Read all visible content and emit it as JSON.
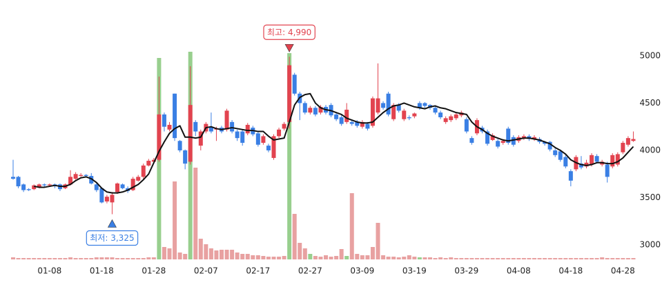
{
  "chart_data": {
    "type": "candlestick",
    "categories": [
      null,
      null,
      null,
      null,
      null,
      null,
      null,
      "01-08",
      null,
      null,
      null,
      null,
      null,
      null,
      null,
      null,
      null,
      "01-18",
      null,
      null,
      null,
      null,
      null,
      null,
      null,
      null,
      null,
      "01-28",
      null,
      null,
      null,
      null,
      null,
      null,
      null,
      null,
      null,
      "02-07",
      null,
      null,
      null,
      null,
      null,
      null,
      null,
      null,
      null,
      "02-17",
      null,
      null,
      null,
      null,
      null,
      null,
      null,
      null,
      null,
      "02-27",
      null,
      null,
      null,
      null,
      null,
      null,
      null,
      null,
      null,
      "03-09",
      null,
      null,
      null,
      null,
      null,
      null,
      null,
      null,
      null,
      "03-19",
      null,
      null,
      null,
      null,
      null,
      null,
      null,
      null,
      null,
      "03-29",
      null,
      null,
      null,
      null,
      null,
      null,
      null,
      null,
      null,
      "04-08",
      null,
      null,
      null,
      null,
      null,
      null,
      null,
      null,
      null,
      "04-18",
      null,
      null,
      null,
      null,
      null,
      null,
      null,
      null,
      null,
      "04-28",
      null,
      null
    ],
    "open": [
      3720,
      3720,
      3640,
      3590,
      3590,
      3610,
      3640,
      3630,
      3640,
      3640,
      3600,
      3640,
      3700,
      3730,
      3740,
      3730,
      3640,
      3600,
      3460,
      3450,
      3560,
      3640,
      3600,
      3580,
      3680,
      3720,
      3840,
      3880,
      3900,
      4380,
      4220,
      4600,
      4100,
      4000,
      3880,
      4300,
      4050,
      4200,
      4250,
      4220,
      4240,
      4220,
      4300,
      4200,
      4200,
      4180,
      4240,
      4180,
      4080,
      4050,
      3920,
      4150,
      4230,
      4300,
      4800,
      4600,
      4500,
      4400,
      4450,
      4400,
      4460,
      4480,
      4380,
      4350,
      4300,
      4300,
      4300,
      4250,
      4280,
      4260,
      4400,
      4500,
      4600,
      4330,
      4480,
      4330,
      4350,
      4360,
      4500,
      4500,
      4480,
      4450,
      4400,
      4300,
      4320,
      4340,
      4370,
      4330,
      4130,
      4180,
      4240,
      4200,
      4110,
      4100,
      4080,
      4230,
      4140,
      4100,
      4130,
      4150,
      4120,
      4120,
      4090,
      4090,
      4000,
      3990,
      3930,
      3780,
      3800,
      3860,
      3830,
      3850,
      3940,
      3850,
      3850,
      3830,
      3850,
      3980,
      4060,
      4100
    ],
    "high": [
      3900,
      3730,
      3650,
      3600,
      3640,
      3650,
      3650,
      3650,
      3650,
      3650,
      3650,
      3790,
      3770,
      3760,
      3750,
      3760,
      3650,
      3610,
      3530,
      3560,
      3660,
      3650,
      3620,
      3720,
      3740,
      3860,
      3910,
      3920,
      4780,
      4400,
      4300,
      4600,
      4110,
      4010,
      4890,
      4320,
      4220,
      4300,
      4400,
      4250,
      4260,
      4440,
      4320,
      4220,
      4220,
      4290,
      4260,
      4200,
      4170,
      4070,
      4170,
      4240,
      4300,
      4990,
      4820,
      4620,
      4520,
      4470,
      4470,
      4480,
      4480,
      4500,
      4400,
      4370,
      4500,
      4320,
      4320,
      4320,
      4300,
      4570,
      4920,
      4520,
      4620,
      4500,
      4500,
      4440,
      4370,
      4400,
      4520,
      4510,
      4490,
      4470,
      4420,
      4360,
      4380,
      4400,
      4420,
      4350,
      4150,
      4340,
      4260,
      4220,
      4180,
      4120,
      4120,
      4250,
      4160,
      4160,
      4170,
      4170,
      4160,
      4140,
      4100,
      4100,
      4020,
      4010,
      3950,
      3800,
      3950,
      3940,
      3900,
      3970,
      3960,
      3900,
      3880,
      3970,
      3980,
      4100,
      4150,
      4200
    ],
    "low": [
      3690,
      3600,
      3560,
      3570,
      3580,
      3600,
      3610,
      3620,
      3600,
      3570,
      3590,
      3630,
      3690,
      3720,
      3720,
      3640,
      3560,
      3440,
      3440,
      3325,
      3540,
      3590,
      3550,
      3570,
      3670,
      3700,
      3830,
      3870,
      3880,
      4200,
      4200,
      4100,
      3980,
      3800,
      3850,
      4150,
      4000,
      4180,
      4180,
      4100,
      4180,
      4200,
      4180,
      4100,
      4050,
      4160,
      4150,
      4040,
      4060,
      3980,
      3900,
      4130,
      4210,
      4230,
      4580,
      4320,
      4380,
      4380,
      4360,
      4380,
      4380,
      4350,
      4310,
      4260,
      4280,
      4260,
      4240,
      4230,
      4210,
      4240,
      4380,
      4430,
      4360,
      4310,
      4400,
      4310,
      4320,
      4340,
      4430,
      4450,
      4430,
      4380,
      4330,
      4280,
      4300,
      4320,
      4350,
      4180,
      4060,
      4160,
      4180,
      4050,
      4100,
      4020,
      4060,
      4060,
      4040,
      4080,
      4110,
      4100,
      4100,
      4070,
      4050,
      3990,
      3930,
      3880,
      3810,
      3620,
      3780,
      3800,
      3810,
      3830,
      3860,
      3830,
      3660,
      3810,
      3830,
      3960,
      4040,
      4090
    ],
    "close": [
      3700,
      3620,
      3580,
      3580,
      3630,
      3640,
      3630,
      3640,
      3620,
      3590,
      3640,
      3720,
      3750,
      3740,
      3730,
      3650,
      3580,
      3450,
      3510,
      3530,
      3650,
      3600,
      3570,
      3700,
      3720,
      3840,
      3890,
      3900,
      4380,
      4250,
      4270,
      4130,
      4000,
      3860,
      4480,
      4200,
      4200,
      4280,
      4200,
      4230,
      4200,
      4420,
      4200,
      4130,
      4080,
      4270,
      4170,
      4060,
      4150,
      4000,
      4150,
      4220,
      4280,
      4900,
      4600,
      4500,
      4400,
      4450,
      4380,
      4460,
      4400,
      4370,
      4330,
      4280,
      4430,
      4280,
      4260,
      4300,
      4230,
      4550,
      4550,
      4450,
      4380,
      4480,
      4420,
      4420,
      4340,
      4390,
      4450,
      4470,
      4450,
      4400,
      4350,
      4340,
      4360,
      4380,
      4400,
      4200,
      4080,
      4320,
      4200,
      4070,
      4160,
      4040,
      4100,
      4080,
      4060,
      4140,
      4150,
      4120,
      4140,
      4090,
      4070,
      4010,
      3950,
      3900,
      3830,
      3680,
      3930,
      3820,
      3870,
      3950,
      3880,
      3880,
      3720,
      3950,
      3960,
      4080,
      4130,
      4120
    ],
    "ma": [
      null,
      null,
      null,
      null,
      3620,
      3610,
      3610,
      3620,
      3630,
      3620,
      3620,
      3640,
      3680,
      3710,
      3720,
      3700,
      3660,
      3600,
      3560,
      3550,
      3550,
      3560,
      3580,
      3610,
      3640,
      3690,
      3750,
      3870,
      3990,
      4090,
      4180,
      4230,
      4260,
      4140,
      4140,
      4130,
      4140,
      4240,
      4250,
      4230,
      4220,
      4230,
      4240,
      4230,
      4220,
      4210,
      4210,
      4200,
      4200,
      4150,
      4110,
      4120,
      4130,
      4300,
      4480,
      4560,
      4590,
      4600,
      4500,
      4450,
      4430,
      4420,
      4400,
      4380,
      4340,
      4320,
      4300,
      4290,
      4290,
      4300,
      4350,
      4400,
      4440,
      4470,
      4480,
      4500,
      4480,
      4460,
      4450,
      4440,
      4460,
      4470,
      4450,
      4440,
      4420,
      4400,
      4390,
      4380,
      4300,
      4250,
      4220,
      4180,
      4150,
      4130,
      4110,
      4100,
      4110,
      4120,
      4130,
      4130,
      4120,
      4110,
      4090,
      4070,
      4030,
      4000,
      3960,
      3900,
      3870,
      3850,
      3840,
      3850,
      3870,
      3870,
      3860,
      3860,
      3880,
      3920,
      3980,
      4040
    ],
    "ma_color": "#111111",
    "up_color": "#e2434f",
    "down_color": "#3a7fe4",
    "volume": [
      3,
      2,
      2,
      2,
      2,
      2,
      2,
      2,
      2,
      2,
      2,
      3,
      2,
      2,
      2,
      2,
      3,
      3,
      3,
      3,
      2,
      2,
      2,
      2,
      2,
      2,
      3,
      3,
      292,
      18,
      16,
      113,
      10,
      8,
      301,
      133,
      30,
      22,
      16,
      13,
      14,
      14,
      14,
      10,
      8,
      8,
      6,
      6,
      5,
      4,
      4,
      4,
      5,
      299,
      66,
      24,
      16,
      8,
      5,
      4,
      6,
      4,
      5,
      15,
      5,
      96,
      8,
      6,
      6,
      18,
      53,
      6,
      4,
      4,
      3,
      4,
      6,
      4,
      3,
      3,
      3,
      2,
      3,
      2,
      3,
      2,
      2,
      2,
      2,
      2,
      2,
      2,
      2,
      2,
      2,
      2,
      2,
      2,
      2,
      2,
      2,
      2,
      2,
      2,
      2,
      2,
      2,
      2,
      2,
      2,
      2,
      2,
      2,
      3,
      2,
      2,
      2,
      2,
      2,
      2
    ],
    "volume_lim": [
      0,
      320
    ],
    "volume_palette": [
      "#e8a1a1",
      "#98cf8e"
    ],
    "volume_color_index": [
      0,
      0,
      0,
      0,
      0,
      0,
      0,
      0,
      0,
      0,
      0,
      0,
      0,
      0,
      0,
      0,
      0,
      0,
      0,
      0,
      0,
      0,
      0,
      0,
      0,
      0,
      0,
      0,
      1,
      0,
      0,
      0,
      0,
      0,
      1,
      0,
      0,
      0,
      0,
      0,
      0,
      0,
      0,
      0,
      0,
      0,
      0,
      0,
      0,
      0,
      0,
      0,
      0,
      1,
      0,
      0,
      0,
      1,
      0,
      0,
      0,
      0,
      0,
      0,
      1,
      0,
      0,
      0,
      0,
      0,
      0,
      0,
      0,
      0,
      0,
      0,
      0,
      0,
      1,
      0,
      0,
      0,
      0,
      0,
      0,
      0,
      0,
      0,
      0,
      0,
      0,
      0,
      0,
      0,
      0,
      0,
      0,
      0,
      0,
      0,
      0,
      0,
      0,
      0,
      0,
      0,
      0,
      0,
      0,
      0,
      0,
      0,
      0,
      0,
      0,
      0,
      0,
      0,
      0,
      0
    ],
    "ylim": [
      2840,
      5590
    ],
    "yticks": [
      3000,
      3500,
      4000,
      4500,
      5000
    ],
    "annotations": [
      {
        "text": "최고: 4,990",
        "value": 4990,
        "x": 53,
        "color": "#e2434f"
      },
      {
        "text": "최저: 3,325",
        "value": 3325,
        "x": 19,
        "color": "#3a7fe4"
      }
    ]
  }
}
